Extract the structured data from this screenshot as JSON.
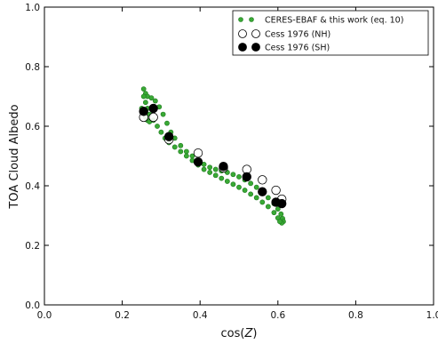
{
  "chart_data": {
    "type": "scatter",
    "title": "",
    "xlabel": "cos(",
    "xlabel_var": "Z",
    "xlabel_close": ")",
    "ylabel": "TOA Cloud Albedo",
    "xlim": [
      0.0,
      1.0
    ],
    "ylim": [
      0.0,
      1.0
    ],
    "xticks": [
      "0.0",
      "0.2",
      "0.4",
      "0.6",
      "0.8",
      "1.0"
    ],
    "yticks": [
      "0.0",
      "0.2",
      "0.4",
      "0.6",
      "0.8",
      "1.0"
    ],
    "grid": false,
    "legend_position": "top-right",
    "series": [
      {
        "name": "CERES-EBAF & this work (eq. 10)",
        "marker": "small-filled-circle",
        "color": "#39a935",
        "edge_color": "#1f7a1f",
        "branches": [
          [
            [
              0.255,
              0.725
            ],
            [
              0.26,
              0.71
            ],
            [
              0.265,
              0.7
            ],
            [
              0.275,
              0.695
            ],
            [
              0.285,
              0.685
            ],
            [
              0.295,
              0.665
            ],
            [
              0.305,
              0.64
            ],
            [
              0.315,
              0.61
            ],
            [
              0.325,
              0.58
            ],
            [
              0.335,
              0.56
            ],
            [
              0.35,
              0.535
            ],
            [
              0.365,
              0.515
            ],
            [
              0.38,
              0.5
            ],
            [
              0.395,
              0.485
            ],
            [
              0.41,
              0.472
            ],
            [
              0.425,
              0.462
            ],
            [
              0.44,
              0.455
            ],
            [
              0.455,
              0.45
            ],
            [
              0.47,
              0.445
            ],
            [
              0.485,
              0.438
            ],
            [
              0.5,
              0.43
            ],
            [
              0.515,
              0.42
            ],
            [
              0.53,
              0.408
            ],
            [
              0.545,
              0.395
            ],
            [
              0.56,
              0.38
            ],
            [
              0.575,
              0.36
            ],
            [
              0.59,
              0.34
            ],
            [
              0.6,
              0.322
            ],
            [
              0.608,
              0.305
            ],
            [
              0.612,
              0.29
            ],
            [
              0.614,
              0.28
            ],
            [
              0.61,
              0.275
            ]
          ],
          [
            [
              0.255,
              0.7
            ],
            [
              0.26,
              0.68
            ],
            [
              0.265,
              0.66
            ],
            [
              0.27,
              0.64
            ],
            [
              0.28,
              0.62
            ],
            [
              0.29,
              0.6
            ],
            [
              0.3,
              0.58
            ],
            [
              0.31,
              0.56
            ],
            [
              0.32,
              0.545
            ],
            [
              0.335,
              0.53
            ],
            [
              0.35,
              0.515
            ],
            [
              0.365,
              0.5
            ],
            [
              0.38,
              0.485
            ],
            [
              0.395,
              0.47
            ],
            [
              0.41,
              0.455
            ],
            [
              0.425,
              0.445
            ],
            [
              0.44,
              0.435
            ],
            [
              0.455,
              0.425
            ],
            [
              0.47,
              0.415
            ],
            [
              0.485,
              0.405
            ],
            [
              0.5,
              0.395
            ],
            [
              0.515,
              0.385
            ],
            [
              0.53,
              0.372
            ],
            [
              0.545,
              0.36
            ],
            [
              0.56,
              0.345
            ],
            [
              0.575,
              0.33
            ],
            [
              0.59,
              0.31
            ],
            [
              0.6,
              0.292
            ],
            [
              0.605,
              0.28
            ]
          ],
          [
            [
              0.25,
              0.66
            ],
            [
              0.255,
              0.645
            ],
            [
              0.26,
              0.63
            ],
            [
              0.265,
              0.62
            ],
            [
              0.27,
              0.615
            ]
          ]
        ]
      },
      {
        "name": "Cess 1976 (NH)",
        "marker": "open-circle",
        "points": [
          [
            0.255,
            0.63
          ],
          [
            0.28,
            0.63
          ],
          [
            0.32,
            0.555
          ],
          [
            0.395,
            0.51
          ],
          [
            0.46,
            0.46
          ],
          [
            0.52,
            0.455
          ],
          [
            0.56,
            0.42
          ],
          [
            0.595,
            0.385
          ],
          [
            0.61,
            0.355
          ]
        ]
      },
      {
        "name": "Cess 1976 (SH)",
        "marker": "filled-circle",
        "points": [
          [
            0.255,
            0.65
          ],
          [
            0.28,
            0.66
          ],
          [
            0.32,
            0.565
          ],
          [
            0.395,
            0.48
          ],
          [
            0.46,
            0.465
          ],
          [
            0.52,
            0.43
          ],
          [
            0.56,
            0.38
          ],
          [
            0.595,
            0.345
          ],
          [
            0.61,
            0.34
          ]
        ]
      }
    ]
  }
}
